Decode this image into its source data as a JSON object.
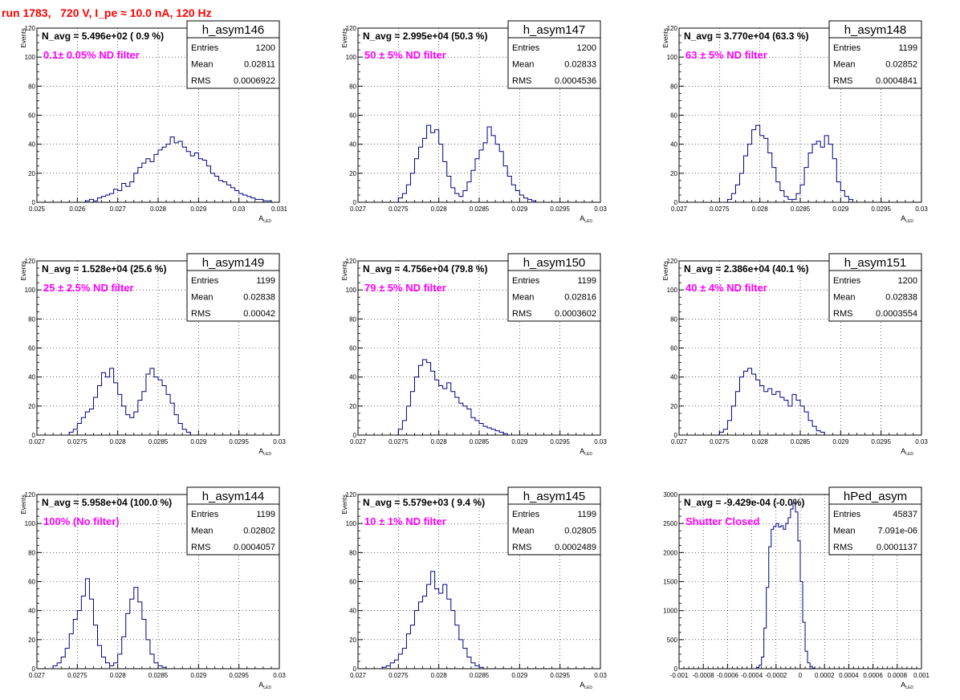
{
  "header": {
    "title": "run 1783,   720 V, I_pe ≈ 10.0 nA, 120 Hz"
  },
  "colors": {
    "histogram": "#000080",
    "title": "#ff0000",
    "annotation": "#ff00ff",
    "grid": "#000000"
  },
  "chart_data": [
    {
      "type": "bar",
      "name": "h_asym146",
      "avg_text": "N_avg = 5.496e+02 ( 0.9 %)",
      "filter_text": "0.1± 0.05% ND filter",
      "stats": {
        "entries": "1200",
        "mean": "0.02811",
        "rms": "0.0006922"
      },
      "xlabel": "A",
      "xlabel_sub": "LED",
      "ylabel": "Events",
      "xlim": [
        0.025,
        0.031
      ],
      "ylim": [
        0,
        120
      ],
      "xticks": [
        0.025,
        0.026,
        0.027,
        0.028,
        0.029,
        0.03,
        0.031
      ],
      "xtick_labels": [
        "0.025",
        "0.026",
        "0.027",
        "0.028",
        "0.029",
        "0.03",
        "0.031"
      ],
      "yticks": [
        0,
        20,
        40,
        60,
        80,
        100,
        120
      ],
      "ytick_labels": [
        "0",
        "20",
        "40",
        "60",
        "80",
        "100",
        "120"
      ],
      "bin_start": 0.0262,
      "bin_width": 0.0001,
      "values": [
        1,
        2,
        1,
        3,
        4,
        5,
        6,
        9,
        8,
        13,
        11,
        14,
        20,
        24,
        27,
        30,
        28,
        33,
        36,
        38,
        40,
        45,
        41,
        42,
        38,
        35,
        32,
        34,
        30,
        29,
        25,
        20,
        18,
        15,
        14,
        12,
        10,
        8,
        6,
        5,
        4,
        3,
        2,
        2,
        1,
        1
      ]
    },
    {
      "type": "bar",
      "name": "h_asym147",
      "avg_text": "N_avg = 2.995e+04 (50.3 %)",
      "filter_text": "50 ± 5% ND filter",
      "stats": {
        "entries": "1200",
        "mean": "0.02833",
        "rms": "0.0004536"
      },
      "xlabel": "A",
      "xlabel_sub": "LED",
      "ylabel": "Events",
      "xlim": [
        0.027,
        0.03
      ],
      "ylim": [
        0,
        120
      ],
      "xticks": [
        0.027,
        0.0275,
        0.028,
        0.0285,
        0.029,
        0.0295,
        0.03
      ],
      "xtick_labels": [
        "0.027",
        "0.0275",
        "0.028",
        "0.0285",
        "0.029",
        "0.0295",
        "0.03"
      ],
      "yticks": [
        0,
        20,
        40,
        60,
        80,
        100,
        120
      ],
      "ytick_labels": [
        "0",
        "20",
        "40",
        "60",
        "80",
        "100",
        "120"
      ],
      "bin_start": 0.0275,
      "bin_width": 5e-05,
      "values": [
        3,
        6,
        12,
        20,
        30,
        38,
        44,
        53,
        48,
        50,
        40,
        28,
        18,
        10,
        6,
        4,
        8,
        14,
        22,
        30,
        36,
        41,
        52,
        46,
        40,
        35,
        25,
        18,
        12,
        8,
        5,
        3,
        2,
        1
      ]
    },
    {
      "type": "bar",
      "name": "h_asym148",
      "avg_text": "N_avg = 3.770e+04 (63.3 %)",
      "filter_text": "63 ± 5% ND filter",
      "stats": {
        "entries": "1199",
        "mean": "0.02852",
        "rms": "0.0004841"
      },
      "xlabel": "A",
      "xlabel_sub": "LED",
      "ylabel": "Events",
      "xlim": [
        0.027,
        0.03
      ],
      "ylim": [
        0,
        120
      ],
      "xticks": [
        0.027,
        0.0275,
        0.028,
        0.0285,
        0.029,
        0.0295,
        0.03
      ],
      "xtick_labels": [
        "0.027",
        "0.0275",
        "0.028",
        "0.0285",
        "0.029",
        "0.0295",
        "0.03"
      ],
      "yticks": [
        0,
        20,
        40,
        60,
        80,
        100,
        120
      ],
      "ytick_labels": [
        "0",
        "20",
        "40",
        "60",
        "80",
        "100",
        "120"
      ],
      "bin_start": 0.0276,
      "bin_width": 5e-05,
      "values": [
        2,
        6,
        12,
        20,
        32,
        40,
        50,
        53,
        46,
        44,
        34,
        24,
        14,
        8,
        4,
        2,
        2,
        6,
        12,
        24,
        34,
        40,
        42,
        38,
        46,
        40,
        30,
        14,
        8,
        4,
        2
      ]
    },
    {
      "type": "bar",
      "name": "h_asym149",
      "avg_text": "N_avg = 1.528e+04 (25.6 %)",
      "filter_text": "25 ± 2.5% ND filter",
      "stats": {
        "entries": "1199",
        "mean": "0.02838",
        "rms": "0.00042"
      },
      "xlabel": "A",
      "xlabel_sub": "LED",
      "ylabel": "Events",
      "xlim": [
        0.027,
        0.03
      ],
      "ylim": [
        0,
        120
      ],
      "xticks": [
        0.027,
        0.0275,
        0.028,
        0.0285,
        0.029,
        0.0295,
        0.03
      ],
      "xtick_labels": [
        "0.027",
        "0.0275",
        "0.028",
        "0.0285",
        "0.029",
        "0.0295",
        "0.03"
      ],
      "yticks": [
        0,
        20,
        40,
        60,
        80,
        100,
        120
      ],
      "ytick_labels": [
        "0",
        "20",
        "40",
        "60",
        "80",
        "100",
        "120"
      ],
      "bin_start": 0.0274,
      "bin_width": 5e-05,
      "values": [
        2,
        4,
        8,
        12,
        16,
        18,
        26,
        34,
        43,
        40,
        46,
        36,
        28,
        20,
        14,
        12,
        16,
        24,
        30,
        42,
        46,
        40,
        38,
        34,
        28,
        22,
        14,
        8,
        4,
        2
      ]
    },
    {
      "type": "bar",
      "name": "h_asym150",
      "avg_text": "N_avg = 4.756e+04 (79.8 %)",
      "filter_text": "79 ± 5% ND filter",
      "stats": {
        "entries": "1199",
        "mean": "0.02816",
        "rms": "0.0003602"
      },
      "xlabel": "A",
      "xlabel_sub": "LED",
      "ylabel": "Events",
      "xlim": [
        0.027,
        0.03
      ],
      "ylim": [
        0,
        120
      ],
      "xticks": [
        0.027,
        0.0275,
        0.028,
        0.0285,
        0.029,
        0.0295,
        0.03
      ],
      "xtick_labels": [
        "0.027",
        "0.0275",
        "0.028",
        "0.0285",
        "0.029",
        "0.0295",
        "0.03"
      ],
      "yticks": [
        0,
        20,
        40,
        60,
        80,
        100,
        120
      ],
      "ytick_labels": [
        "0",
        "20",
        "40",
        "60",
        "80",
        "100",
        "120"
      ],
      "bin_start": 0.0275,
      "bin_width": 5e-05,
      "values": [
        4,
        10,
        20,
        30,
        40,
        48,
        52,
        50,
        44,
        38,
        34,
        32,
        36,
        30,
        26,
        22,
        20,
        18,
        12,
        10,
        8,
        6,
        5,
        4,
        3,
        2,
        1
      ]
    },
    {
      "type": "bar",
      "name": "h_asym151",
      "avg_text": "N_avg = 2.386e+04 (40.1 %)",
      "filter_text": "40 ± 4% ND filter",
      "stats": {
        "entries": "1200",
        "mean": "0.02838",
        "rms": "0.0003554"
      },
      "xlabel": "A",
      "xlabel_sub": "LED",
      "ylabel": "Events",
      "xlim": [
        0.027,
        0.03
      ],
      "ylim": [
        0,
        120
      ],
      "xticks": [
        0.027,
        0.0275,
        0.028,
        0.0285,
        0.029,
        0.0295,
        0.03
      ],
      "xtick_labels": [
        "0.027",
        "0.0275",
        "0.028",
        "0.0285",
        "0.029",
        "0.0295",
        "0.03"
      ],
      "yticks": [
        0,
        20,
        40,
        60,
        80,
        100,
        120
      ],
      "ytick_labels": [
        "0",
        "20",
        "40",
        "60",
        "80",
        "100",
        "120"
      ],
      "bin_start": 0.0275,
      "bin_width": 5e-05,
      "values": [
        2,
        4,
        10,
        20,
        30,
        40,
        44,
        46,
        42,
        38,
        34,
        30,
        32,
        28,
        30,
        26,
        24,
        20,
        28,
        24,
        20,
        16,
        10,
        6,
        3,
        2
      ]
    },
    {
      "type": "bar",
      "name": "h_asym144",
      "avg_text": "N_avg = 5.958e+04 (100.0 %)",
      "filter_text": "100% (No filter)",
      "stats": {
        "entries": "1199",
        "mean": "0.02802",
        "rms": "0.0004057"
      },
      "xlabel": "A",
      "xlabel_sub": "LED",
      "ylabel": "Events",
      "xlim": [
        0.027,
        0.03
      ],
      "ylim": [
        0,
        120
      ],
      "xticks": [
        0.027,
        0.0275,
        0.028,
        0.0285,
        0.029,
        0.0295,
        0.03
      ],
      "xtick_labels": [
        "0.027",
        "0.0275",
        "0.028",
        "0.0285",
        "0.029",
        "0.0295",
        "0.03"
      ],
      "yticks": [
        0,
        20,
        40,
        60,
        80,
        100,
        120
      ],
      "ytick_labels": [
        "0",
        "20",
        "40",
        "60",
        "80",
        "100",
        "120"
      ],
      "bin_start": 0.0272,
      "bin_width": 5e-05,
      "values": [
        2,
        4,
        8,
        14,
        24,
        34,
        40,
        50,
        62,
        48,
        30,
        16,
        8,
        4,
        2,
        4,
        10,
        22,
        38,
        48,
        56,
        46,
        34,
        20,
        10,
        4,
        2,
        1
      ]
    },
    {
      "type": "bar",
      "name": "h_asym145",
      "avg_text": "N_avg = 5.579e+03 ( 9.4 %)",
      "filter_text": "10 ± 1% ND filter",
      "stats": {
        "entries": "1199",
        "mean": "0.02805",
        "rms": "0.0002489"
      },
      "xlabel": "A",
      "xlabel_sub": "LED",
      "ylabel": "Events",
      "xlim": [
        0.027,
        0.03
      ],
      "ylim": [
        0,
        120
      ],
      "xticks": [
        0.027,
        0.0275,
        0.028,
        0.0285,
        0.029,
        0.0295,
        0.03
      ],
      "xtick_labels": [
        "0.027",
        "0.0275",
        "0.028",
        "0.0285",
        "0.029",
        "0.0295",
        "0.03"
      ],
      "yticks": [
        0,
        20,
        40,
        60,
        80,
        100,
        120
      ],
      "ytick_labels": [
        "0",
        "20",
        "40",
        "60",
        "80",
        "100",
        "120"
      ],
      "bin_start": 0.0273,
      "bin_width": 5e-05,
      "values": [
        1,
        2,
        4,
        6,
        10,
        14,
        24,
        30,
        40,
        46,
        50,
        58,
        67,
        55,
        52,
        58,
        48,
        40,
        30,
        20,
        14,
        8,
        4,
        2,
        1
      ]
    },
    {
      "type": "bar",
      "name": "hPed_asym",
      "avg_text": "N_avg = -9.429e-04 (-0.0%)",
      "filter_text": "Shutter Closed",
      "stats": {
        "entries": "45837",
        "mean": "7.091e-06",
        "rms": "0.0001137"
      },
      "xlabel": "A",
      "xlabel_sub": "LED",
      "ylabel": "",
      "xlim": [
        -0.001,
        0.001
      ],
      "ylim": [
        0,
        3000
      ],
      "xticks": [
        -0.001,
        -0.0008,
        -0.0006,
        -0.0004,
        -0.0002,
        0,
        0.0002,
        0.0004,
        0.0006,
        0.0008,
        0.001
      ],
      "xtick_labels": [
        "-0.001",
        "-0.0008",
        "-0.0006",
        "-0.0004",
        "-0.0002",
        "0",
        "0.0002",
        "0.0004",
        "0.0006",
        "0.0008",
        "0.001"
      ],
      "yticks": [
        0,
        500,
        1000,
        1500,
        2000,
        2500,
        3000
      ],
      "ytick_labels": [
        "0",
        "500",
        "1000",
        "1500",
        "2000",
        "2500",
        "3000"
      ],
      "bin_start": -0.00036,
      "bin_width": 2e-05,
      "values": [
        20,
        60,
        200,
        700,
        1400,
        2100,
        2400,
        2450,
        2500,
        2440,
        2460,
        2400,
        2500,
        2600,
        2750,
        2850,
        2700,
        2200,
        1500,
        800,
        300,
        100,
        40,
        10
      ]
    }
  ]
}
